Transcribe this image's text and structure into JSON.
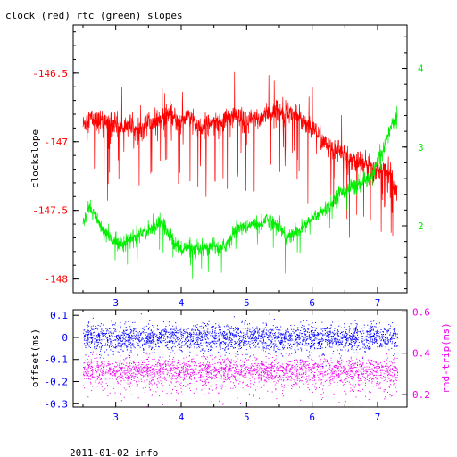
{
  "title": "clock (red) rtc (green) slopes",
  "footer": "2011-01-02 info",
  "colors": {
    "red": "#ff0000",
    "green": "#00ee00",
    "blue": "#0000ff",
    "magenta": "#ee00ee",
    "axis": "#000000"
  },
  "chart_data": [
    {
      "type": "line",
      "ylabel": "clockslope",
      "xlim": [
        2.35,
        7.45
      ],
      "ylim": [
        -148.1,
        -146.15
      ],
      "y2lim": [
        1.15,
        4.55
      ],
      "x_ticks": [
        "3",
        "4",
        "5",
        "6",
        "7"
      ],
      "y_ticks": [
        "-146.5",
        "-147",
        "-147.5",
        "-148"
      ],
      "y2_ticks": [
        "2",
        "3",
        "4"
      ],
      "series": [
        {
          "axis": "left",
          "color": "red",
          "x": [
            2.5,
            2.6,
            2.7,
            2.8,
            2.9,
            3.0,
            3.1,
            3.2,
            3.3,
            3.4,
            3.5,
            3.6,
            3.7,
            3.8,
            3.9,
            4.0,
            4.1,
            4.2,
            4.3,
            4.4,
            4.5,
            4.6,
            4.7,
            4.8,
            4.9,
            5.0,
            5.1,
            5.2,
            5.3,
            5.4,
            5.5,
            5.6,
            5.7,
            5.8,
            5.9,
            6.0,
            6.1,
            6.2,
            6.3,
            6.4,
            6.5,
            6.6,
            6.7,
            6.8,
            6.9,
            7.0,
            7.1,
            7.2,
            7.3
          ],
          "y": [
            -146.88,
            -146.82,
            -146.86,
            -146.84,
            -146.88,
            -146.86,
            -146.9,
            -146.87,
            -146.93,
            -146.9,
            -146.85,
            -146.88,
            -146.82,
            -146.8,
            -146.84,
            -146.86,
            -146.8,
            -146.88,
            -146.92,
            -146.86,
            -146.84,
            -146.88,
            -146.82,
            -146.8,
            -146.84,
            -146.88,
            -146.82,
            -146.84,
            -146.78,
            -146.8,
            -146.76,
            -146.78,
            -146.8,
            -146.82,
            -146.86,
            -146.9,
            -146.95,
            -147.02,
            -147.06,
            -147.05,
            -147.1,
            -147.12,
            -147.16,
            -147.15,
            -147.18,
            -147.2,
            -147.22,
            -147.22,
            -147.38
          ]
        },
        {
          "axis": "right",
          "color": "green",
          "x": [
            2.5,
            2.6,
            2.7,
            2.8,
            2.9,
            3.0,
            3.1,
            3.2,
            3.3,
            3.4,
            3.5,
            3.6,
            3.7,
            3.8,
            3.9,
            4.0,
            4.1,
            4.2,
            4.3,
            4.4,
            4.5,
            4.6,
            4.7,
            4.8,
            4.9,
            5.0,
            5.1,
            5.2,
            5.3,
            5.4,
            5.5,
            5.6,
            5.7,
            5.8,
            5.9,
            6.0,
            6.1,
            6.2,
            6.3,
            6.4,
            6.5,
            6.6,
            6.7,
            6.8,
            6.9,
            7.0,
            7.1,
            7.2,
            7.3
          ],
          "y": [
            2.0,
            2.25,
            2.1,
            1.95,
            1.85,
            1.8,
            1.78,
            1.82,
            1.85,
            1.9,
            1.95,
            2.0,
            2.05,
            1.9,
            1.78,
            1.7,
            1.72,
            1.68,
            1.7,
            1.72,
            1.75,
            1.7,
            1.78,
            1.9,
            2.0,
            1.95,
            2.05,
            2.0,
            2.1,
            2.05,
            2.0,
            1.85,
            1.88,
            1.95,
            2.0,
            2.1,
            2.15,
            2.2,
            2.3,
            2.4,
            2.45,
            2.5,
            2.5,
            2.55,
            2.6,
            2.8,
            3.0,
            3.25,
            3.4
          ]
        }
      ]
    },
    {
      "type": "scatter",
      "ylabel": "offset(ms)",
      "y2label": "rnd-trip(ms)",
      "xlim": [
        2.35,
        7.45
      ],
      "ylim": [
        -0.315,
        0.125
      ],
      "y2lim": [
        0.14,
        0.61
      ],
      "x_ticks": [
        "3",
        "4",
        "5",
        "6",
        "7"
      ],
      "y_ticks": [
        "0.1",
        "0",
        "-0.1",
        "-0.2",
        "-0.3"
      ],
      "y2_ticks": [
        "0.6",
        "0.4",
        "0.2"
      ],
      "series": [
        {
          "axis": "left",
          "color": "blue",
          "x_range": [
            2.5,
            7.3
          ],
          "center": 0.0,
          "spread": 0.03
        },
        {
          "axis": "right",
          "color": "magenta",
          "x_range": [
            2.5,
            7.3
          ],
          "center": 0.32,
          "spread": 0.03
        }
      ]
    }
  ]
}
